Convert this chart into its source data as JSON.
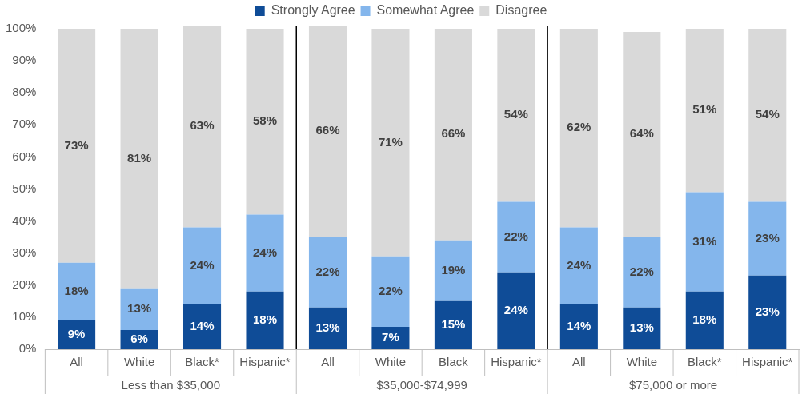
{
  "chart_data": {
    "type": "bar",
    "stacked": true,
    "legend": "top",
    "grid": false,
    "categories": [
      "All",
      "White",
      "Black*",
      "Hispanic*",
      "All",
      "White",
      "Black",
      "Hispanic*",
      "All",
      "White",
      "Black*",
      "Hispanic*"
    ],
    "series": [
      {
        "name": "Strongly Agree",
        "color": "#0f4c97",
        "values": [
          9,
          6,
          14,
          18,
          13,
          7,
          15,
          24,
          14,
          13,
          18,
          23
        ],
        "value_labels": [
          "9%",
          "6%",
          "14%",
          "18%",
          "13%",
          "7%",
          "15%",
          "24%",
          "14%",
          "13%",
          "18%",
          "23%"
        ]
      },
      {
        "name": "Somewhat Agree",
        "color": "#84b6ec",
        "values": [
          18,
          13,
          24,
          24,
          22,
          22,
          19,
          22,
          24,
          22,
          31,
          23
        ],
        "value_labels": [
          "18%",
          "13%",
          "24%",
          "24%",
          "22%",
          "22%",
          "19%",
          "22%",
          "24%",
          "22%",
          "31%",
          "23%"
        ]
      },
      {
        "name": "Disagree",
        "color": "#d9d9d9",
        "values": [
          73,
          81,
          63,
          58,
          66,
          71,
          66,
          54,
          62,
          64,
          51,
          54
        ],
        "value_labels": [
          "73%",
          "81%",
          "63%",
          "58%",
          "66%",
          "71%",
          "66%",
          "54%",
          "62%",
          "64%",
          "51%",
          "54%"
        ]
      }
    ],
    "ylim": [
      0,
      101
    ],
    "yticks": [
      {
        "value": 0,
        "label": "0%"
      },
      {
        "value": 10,
        "label": "10%"
      },
      {
        "value": 20,
        "label": "20%"
      },
      {
        "value": 30,
        "label": "30%"
      },
      {
        "value": 40,
        "label": "40%"
      },
      {
        "value": 50,
        "label": "50%"
      },
      {
        "value": 60,
        "label": "60%"
      },
      {
        "value": 70,
        "label": "70%"
      },
      {
        "value": 80,
        "label": "80%"
      },
      {
        "value": 90,
        "label": "90%"
      },
      {
        "value": 100,
        "label": "100%"
      }
    ],
    "annotations": [
      "Less than $35,000",
      "$35,000-$74,999",
      "$75,000 or more"
    ]
  }
}
